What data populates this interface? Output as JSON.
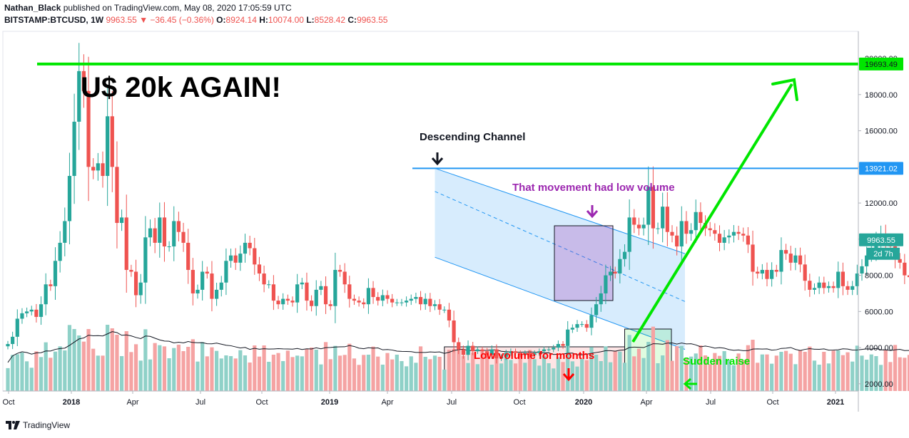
{
  "header": {
    "author": "Nathan_Black",
    "published_text": "published on TradingView.com, May 08, 2020 17:05:59 UTC",
    "symbol": "BITSTAMP:BTCUSD, 1W",
    "last": "9963.55",
    "change_arrow": "▼",
    "change": "−36.45 (−0.36%)",
    "o_label": "O:",
    "o_value": "8924.14",
    "h_label": "H:",
    "h_value": "10074.00",
    "l_label": "L:",
    "l_value": "8528.42",
    "c_label": "C:",
    "c_value": "9963.55"
  },
  "footer": {
    "brand": "TradingView"
  },
  "colors": {
    "up": "#26a69a",
    "down": "#ef5350",
    "vol_up": "#8fd1c8",
    "vol_down": "#f5a3a3",
    "channel": "#2196f3",
    "green": "#00e600",
    "purple": "#9c27b0",
    "red": "#ff0000"
  },
  "chart_data": {
    "type": "candlestick",
    "timeframe": "1W",
    "y_axis": {
      "ticks": [
        "20000.00",
        "18000.00",
        "16000.00",
        "14000.00",
        "12000.00",
        "10000.00",
        "8000.00",
        "6000.00",
        "4000.00",
        "2000.00"
      ],
      "range": [
        1600,
        21500
      ]
    },
    "x_axis": {
      "ticks": [
        "Oct",
        "2018",
        "Apr",
        "Jul",
        "Oct",
        "2019",
        "Apr",
        "Jul",
        "Oct",
        "2020",
        "Apr",
        "Jul",
        "Oct",
        "2021"
      ]
    },
    "price_labels": [
      {
        "text": "19693.49",
        "value": 19693.49,
        "kind": "green"
      },
      {
        "text": "13921.02",
        "value": 13921.02,
        "kind": "blue"
      },
      {
        "text": "9963.55",
        "value": 9963.55,
        "kind": "last"
      }
    ],
    "countdown": "2d 7h",
    "horizontal_lines": [
      {
        "value": 19693.49,
        "color": "green"
      },
      {
        "value": 13921.02,
        "color": "blue"
      }
    ],
    "annotations": {
      "headline": "U$ 20k AGAIN!",
      "channel": "Descending Channel",
      "low_volume_move": "That movement had low volume",
      "low_volume_months": "Low volume for months",
      "sudden_raise": "Sudden raise"
    },
    "closes": [
      4200,
      4600,
      5600,
      5900,
      6000,
      6100,
      5700,
      6400,
      7500,
      7400,
      8800,
      9800,
      11000,
      13500,
      16500,
      19300,
      18200,
      14000,
      13800,
      14200,
      13500,
      16800,
      14000,
      10900,
      11200,
      8300,
      8200,
      6900,
      7600,
      10100,
      10600,
      9800,
      11200,
      9600,
      9600,
      11000,
      10400,
      9800,
      8300,
      7000,
      7200,
      8200,
      8100,
      6700,
      7200,
      7600,
      8800,
      9100,
      8700,
      9200,
      9800,
      9500,
      8600,
      8100,
      7500,
      7500,
      6600,
      6400,
      6700,
      6600,
      6500,
      7500,
      7600,
      6600,
      6300,
      7200,
      7400,
      6400,
      6300,
      8300,
      8200,
      7500,
      6700,
      6600,
      6500,
      6400,
      7300,
      6800,
      6600,
      6900,
      6700,
      6500,
      6500,
      6500,
      6600,
      6700,
      6800,
      6400,
      6700,
      6300,
      6400,
      6100,
      6100,
      5500,
      4300,
      3900,
      3600,
      4100,
      3800,
      3900,
      3800,
      3600,
      3900,
      3400,
      3500,
      3700,
      3800,
      3700,
      3600,
      3700,
      3600,
      3700,
      3800,
      3900,
      3900,
      4000,
      4200,
      4100,
      5000,
      5100,
      5300,
      5300,
      5100,
      5800,
      6400,
      7000,
      8000,
      8200,
      8100,
      8900,
      9300,
      11200,
      10800,
      10600,
      10800,
      12900,
      10600,
      10600,
      11800,
      10400,
      10200,
      9600,
      11000,
      10300,
      10500,
      11500,
      10900,
      10600,
      10500,
      10300,
      9800,
      10100,
      10200,
      10400,
      10300,
      10200,
      9700,
      8200,
      8100,
      8300,
      7800,
      8300,
      8200,
      9400,
      9200,
      8700,
      9100,
      8600,
      7700,
      7200,
      7300,
      7600,
      7300,
      7400,
      7300,
      8200,
      7400,
      7200,
      7400,
      8100,
      8500,
      9100,
      9300,
      9900,
      10300,
      9700,
      9600,
      8900,
      8700,
      8000,
      7900,
      5700,
      5300,
      6200,
      6600,
      6300,
      6800,
      6900,
      7100,
      7000,
      7900,
      8800,
      8900,
      9963
    ]
  }
}
